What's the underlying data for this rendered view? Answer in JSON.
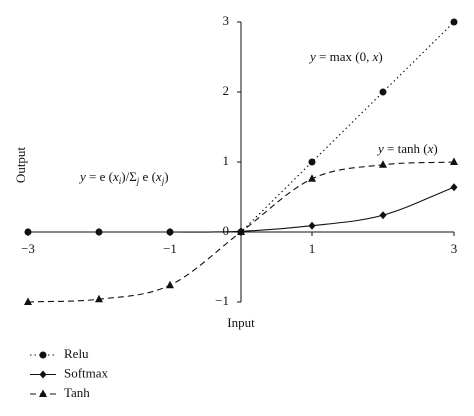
{
  "chart_data": {
    "type": "line",
    "x_label": "Input",
    "y_label": "Output",
    "x": [
      -3,
      -2,
      -1,
      0,
      1,
      2,
      3
    ],
    "series": [
      {
        "name": "Relu",
        "color": "#111111",
        "dash": "dotted",
        "marker": "circle",
        "smooth": false,
        "values": [
          0,
          0,
          0,
          0,
          1,
          2,
          3
        ]
      },
      {
        "name": "Softmax",
        "color": "#111111",
        "dash": "solid",
        "marker": "diamond",
        "smooth": true,
        "values": [
          0,
          0,
          0,
          0.01,
          0.09,
          0.24,
          0.64
        ]
      },
      {
        "name": "Tanh",
        "color": "#111111",
        "dash": "dashed",
        "marker": "triangle",
        "smooth": true,
        "values": [
          -1,
          -0.96,
          -0.76,
          0,
          0.76,
          0.96,
          1
        ]
      }
    ],
    "xlim": [
      -3,
      3
    ],
    "ylim": [
      -1,
      3
    ],
    "xticks": [
      {
        "value": -3,
        "label": "−3"
      },
      {
        "value": -1,
        "label": "−1"
      },
      1,
      3
    ],
    "yticks": [
      {
        "value": -1,
        "label": "−1"
      },
      0,
      1,
      2,
      3
    ],
    "annotations": [
      {
        "parts": [
          {
            "text": "y",
            "italic": true
          },
          {
            "text": " = max (0, "
          },
          {
            "text": "x",
            "italic": true
          },
          {
            "text": ")"
          }
        ]
      },
      {
        "parts": [
          {
            "text": "y",
            "italic": true
          },
          {
            "text": " = tanh ("
          },
          {
            "text": "x",
            "italic": true
          },
          {
            "text": ")"
          }
        ]
      },
      {
        "parts": [
          {
            "text": "y",
            "italic": true
          },
          {
            "text": " = e ("
          },
          {
            "text": "x",
            "italic": true
          },
          {
            "text": "i",
            "italic": true,
            "sub": true
          },
          {
            "text": ")/Σ"
          },
          {
            "text": "j",
            "italic": true,
            "sub": true
          },
          {
            "text": " e ("
          },
          {
            "text": "x",
            "italic": true
          },
          {
            "text": "j",
            "italic": true,
            "sub": true
          },
          {
            "text": ")"
          }
        ]
      }
    ]
  }
}
